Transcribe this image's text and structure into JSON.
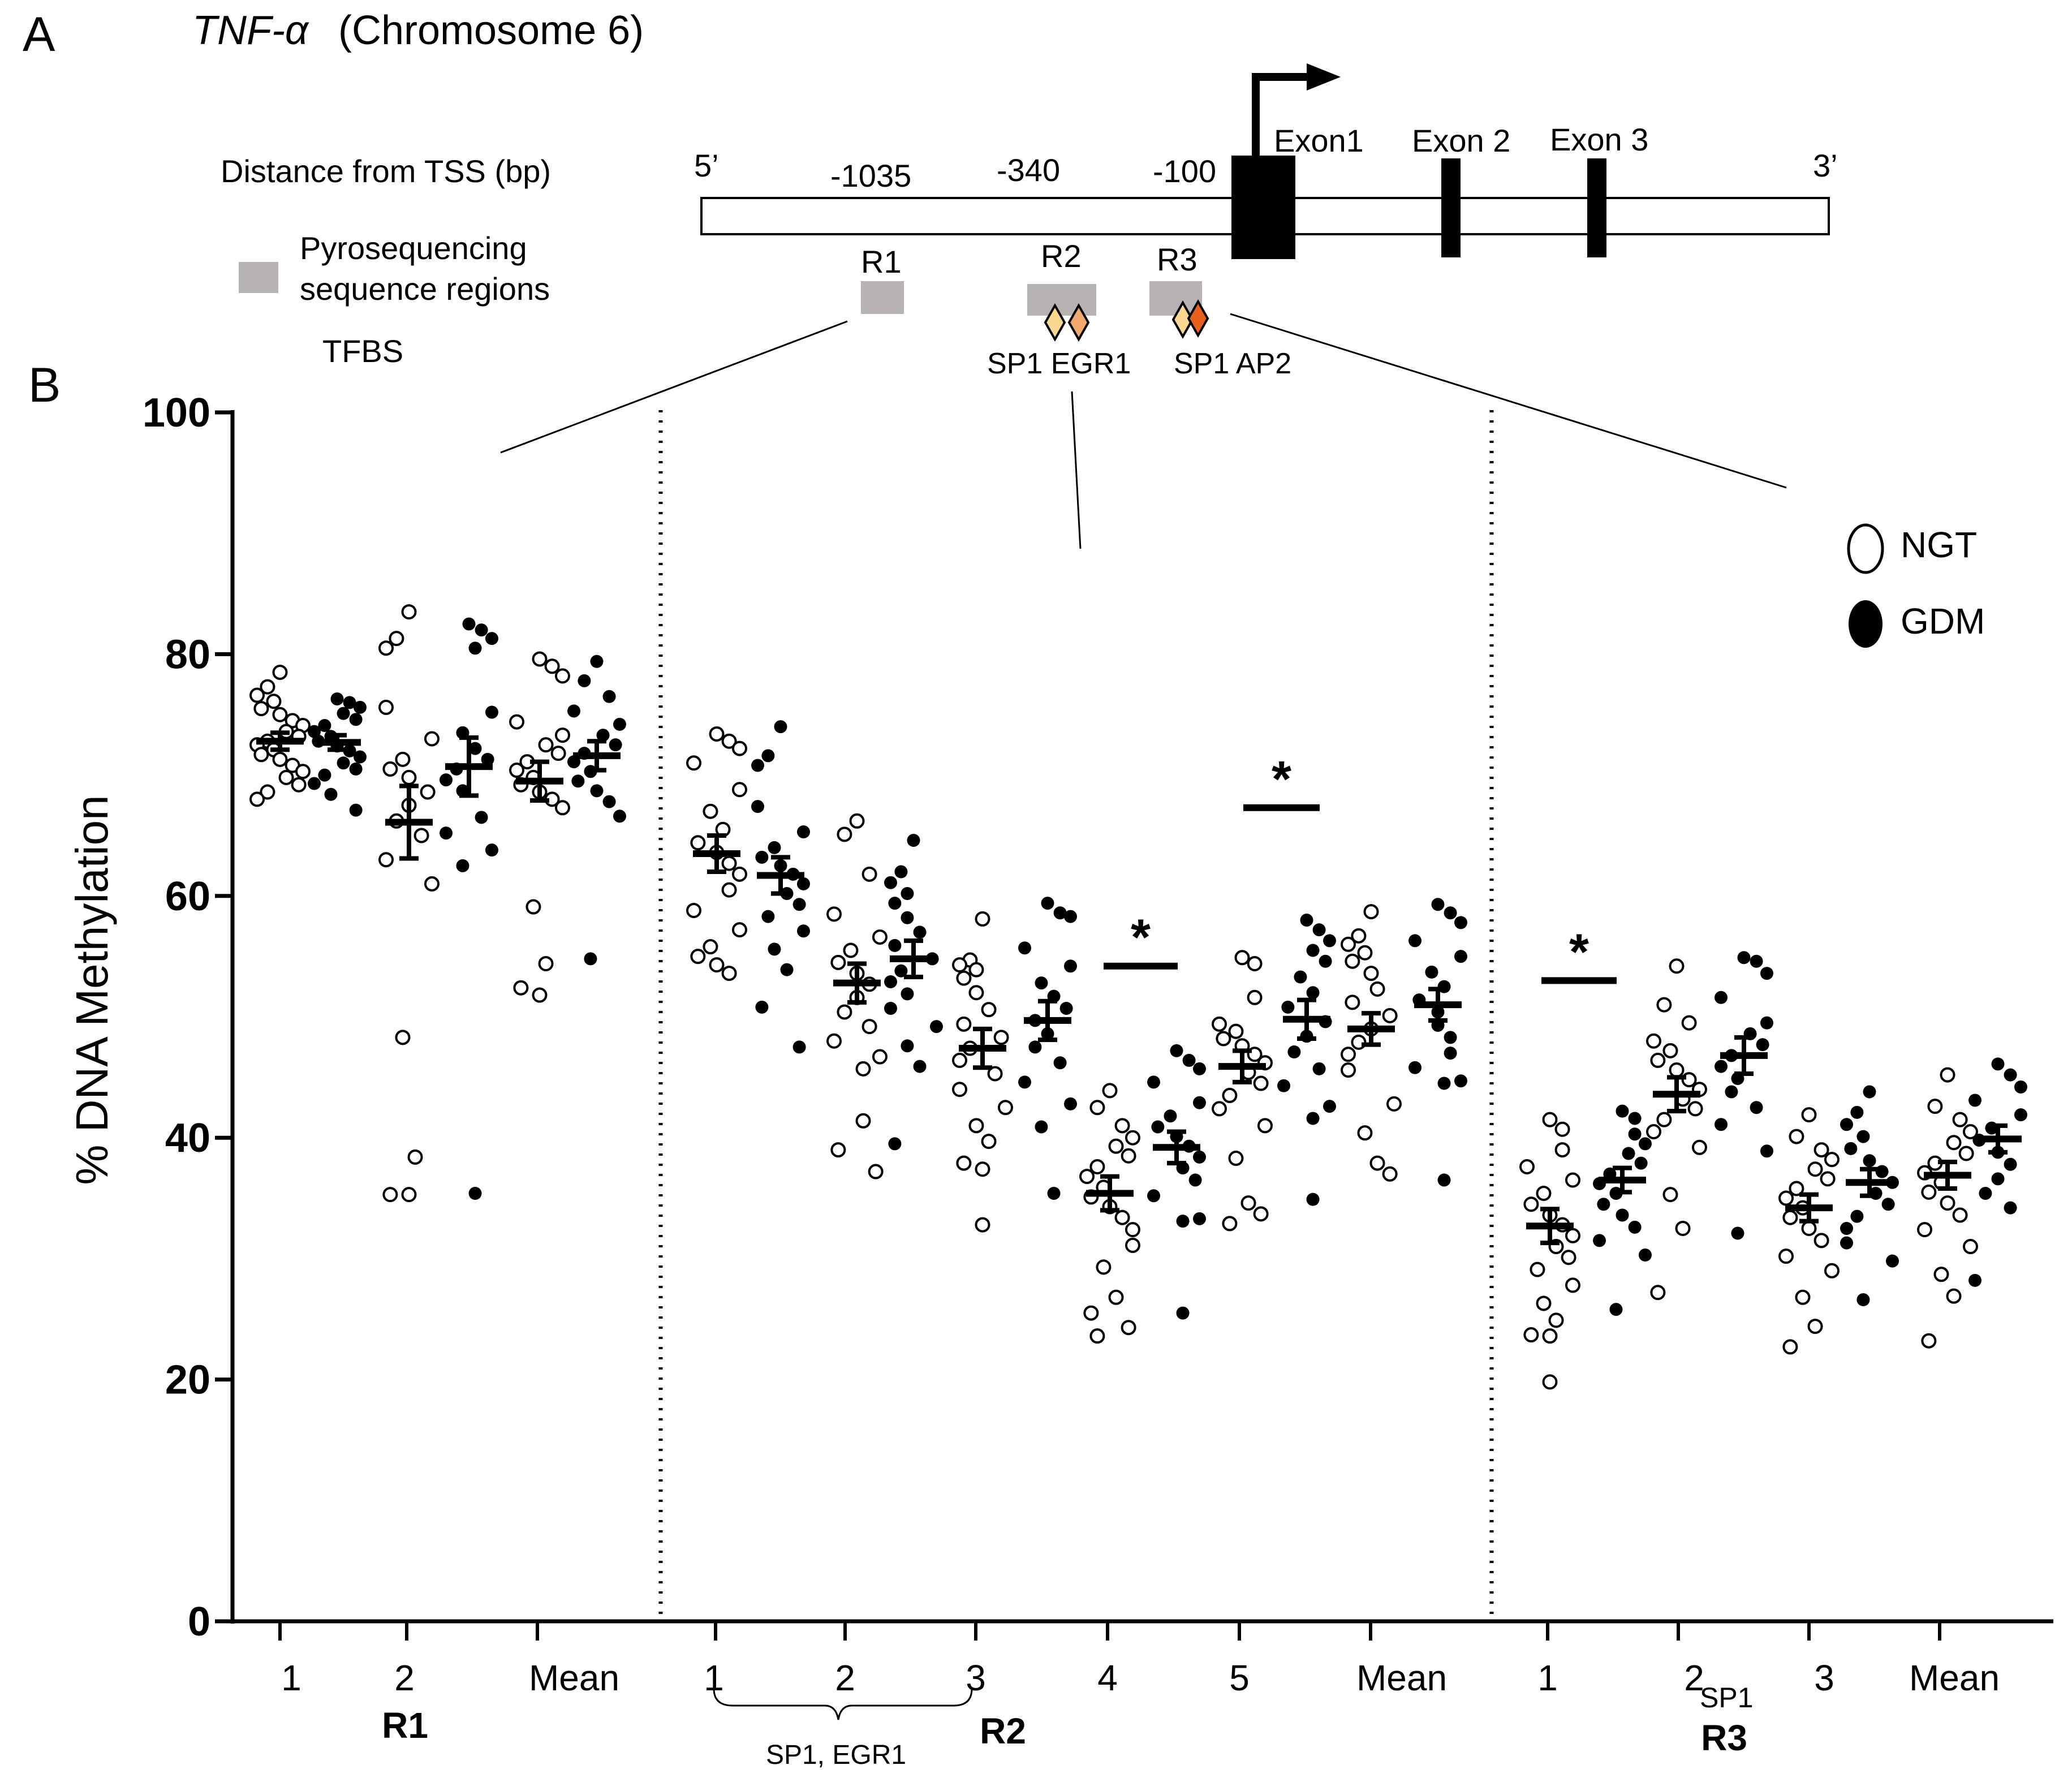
{
  "panel_a": {
    "letter": "A",
    "gene": "TNF-α",
    "chromosome": "(Chromosome 6)",
    "distance_label": "Distance from TSS (bp)",
    "five_prime": "5’",
    "three_prime": "3’",
    "positions": [
      "-1035",
      "-340",
      "-100"
    ],
    "exons": [
      "Exon1",
      "Exon 2",
      "Exon 3"
    ],
    "legend_regions_line1": "Pyrosequencing",
    "legend_regions_line2": "sequence regions",
    "legend_tfbs": "TFBS",
    "regions": [
      "R1",
      "R2",
      "R3"
    ],
    "tfbs_r2": "SP1 EGR1",
    "tfbs_r3": "SP1 AP2",
    "colors": {
      "region_box": "#b7b3b3",
      "tfbs_light": "#fbd891",
      "tfbs_mid": "#f5a86c",
      "tfbs_dark": "#e5611d"
    }
  },
  "chart_data": {
    "type": "scatter",
    "panel_letter": "B",
    "ylabel": "% DNA Methylation",
    "ylim": [
      0,
      100
    ],
    "yticks": [
      "0",
      "20",
      "40",
      "60",
      "80",
      "100"
    ],
    "legend": {
      "ngt": "NGT",
      "gdm": "GDM"
    },
    "bracket_label": "SP1, EGR1",
    "r3_sp1_subscript": "SP1",
    "significance_marker": "*",
    "groups": [
      {
        "region": "R1",
        "label": "1",
        "ngt": {
          "mean": 72.8,
          "sem": 0.7,
          "values": [
            78.5,
            77.3,
            76.6,
            76.1,
            75.5,
            75.0,
            74.5,
            74.1,
            73.6,
            73.2,
            72.8,
            72.5,
            72.1,
            71.7,
            71.3,
            70.8,
            70.3,
            69.8,
            69.2,
            68.6,
            68.0
          ]
        },
        "gdm": {
          "mean": 72.7,
          "sem": 0.6,
          "values": [
            76.3,
            76.0,
            75.6,
            75.1,
            74.6,
            74.1,
            73.6,
            73.2,
            72.8,
            72.4,
            72.0,
            71.5,
            71.0,
            70.5,
            70.0,
            69.3,
            68.4,
            67.1
          ]
        }
      },
      {
        "region": "R1",
        "label": "2",
        "ngt": {
          "mean": 66.1,
          "sem": 3.0,
          "values": [
            83.5,
            81.3,
            80.5,
            75.6,
            73.0,
            71.3,
            70.5,
            69.8,
            68.6,
            67.5,
            66.2,
            65.0,
            63.0,
            61.0,
            48.3,
            38.4,
            35.3,
            35.3
          ]
        },
        "gdm": {
          "mean": 70.7,
          "sem": 2.4,
          "values": [
            82.5,
            82.0,
            81.3,
            80.5,
            75.2,
            73.5,
            72.2,
            71.3,
            70.5,
            69.6,
            68.7,
            66.5,
            65.2,
            63.8,
            62.5,
            35.4
          ]
        }
      },
      {
        "region": "R1",
        "label": "Mean",
        "ngt": {
          "mean": 69.5,
          "sem": 1.6,
          "values": [
            79.6,
            79.0,
            78.2,
            74.4,
            73.3,
            72.5,
            71.8,
            71.1,
            70.4,
            69.8,
            69.2,
            68.6,
            68.0,
            67.3,
            59.1,
            54.4,
            52.4,
            51.8
          ]
        },
        "gdm": {
          "mean": 71.6,
          "sem": 1.2,
          "values": [
            79.4,
            77.8,
            76.5,
            75.3,
            74.2,
            73.3,
            72.5,
            71.8,
            71.1,
            70.3,
            69.5,
            68.7,
            67.8,
            66.6,
            54.8
          ]
        }
      },
      {
        "region": "R2",
        "label": "1",
        "ngt": {
          "mean": 63.5,
          "sem": 1.5,
          "values": [
            73.4,
            72.8,
            72.2,
            71.0,
            68.8,
            67.0,
            65.5,
            64.4,
            63.6,
            62.7,
            61.8,
            60.5,
            58.8,
            57.2,
            55.8,
            55.0,
            54.3,
            53.6
          ]
        },
        "gdm": {
          "mean": 61.7,
          "sem": 1.5,
          "values": [
            74.0,
            71.6,
            70.8,
            67.4,
            65.3,
            64.0,
            63.2,
            62.5,
            61.8,
            61.0,
            60.2,
            59.3,
            58.3,
            57.1,
            55.6,
            53.9,
            50.8,
            47.5
          ]
        }
      },
      {
        "region": "R2",
        "label": "2",
        "ngt": {
          "mean": 52.8,
          "sem": 1.6,
          "values": [
            66.2,
            65.1,
            61.8,
            58.5,
            56.6,
            55.5,
            54.5,
            53.6,
            52.7,
            51.6,
            50.4,
            49.2,
            48.0,
            46.7,
            45.7,
            41.4,
            39.0,
            37.2
          ]
        },
        "gdm": {
          "mean": 54.8,
          "sem": 1.5,
          "values": [
            64.6,
            62.0,
            61.1,
            60.2,
            59.4,
            58.2,
            57.0,
            55.9,
            54.8,
            53.8,
            52.9,
            51.9,
            50.7,
            49.2,
            47.6,
            45.9,
            39.5
          ]
        }
      },
      {
        "region": "R2",
        "label": "3",
        "ngt": {
          "mean": 47.4,
          "sem": 1.6,
          "values": [
            58.1,
            54.7,
            54.3,
            53.9,
            53.2,
            52.0,
            50.6,
            49.4,
            48.3,
            47.4,
            46.4,
            45.3,
            44.0,
            42.5,
            41.0,
            39.7,
            37.9,
            37.4,
            32.8
          ]
        },
        "gdm": {
          "mean": 49.7,
          "sem": 1.6,
          "values": [
            59.4,
            58.6,
            58.3,
            55.7,
            54.2,
            52.8,
            51.7,
            50.7,
            49.7,
            48.6,
            47.5,
            46.2,
            44.6,
            42.8,
            40.9,
            35.4
          ]
        }
      },
      {
        "region": "R2",
        "label": "4",
        "ngt": {
          "mean": 35.4,
          "sem": 1.4,
          "values": [
            43.9,
            42.5,
            41.0,
            40.0,
            39.3,
            38.5,
            37.6,
            36.8,
            35.9,
            35.1,
            34.3,
            33.4,
            32.4,
            31.1,
            29.3,
            26.8,
            25.5,
            24.3,
            23.6
          ]
        },
        "gdm": {
          "mean": 39.2,
          "sem": 1.3,
          "values": [
            47.2,
            46.4,
            45.7,
            44.6,
            42.9,
            41.8,
            40.9,
            40.1,
            39.3,
            38.4,
            37.5,
            36.5,
            35.2,
            33.3,
            33.1,
            25.5
          ]
        }
      },
      {
        "region": "R2",
        "label": "5",
        "ngt": {
          "mean": 45.9,
          "sem": 1.3,
          "values": [
            54.9,
            54.4,
            51.6,
            49.4,
            48.8,
            48.2,
            47.6,
            46.9,
            46.2,
            45.4,
            44.5,
            43.5,
            42.4,
            41.0,
            38.3,
            34.6,
            33.7,
            32.9
          ]
        },
        "gdm": {
          "mean": 49.8,
          "sem": 1.6,
          "values": [
            58.0,
            57.2,
            56.3,
            55.5,
            54.6,
            53.3,
            52.0,
            50.8,
            49.6,
            48.4,
            47.1,
            45.7,
            44.3,
            42.6,
            41.6,
            34.9
          ]
        }
      },
      {
        "region": "R2",
        "label": "Mean",
        "ngt": {
          "mean": 49.0,
          "sem": 1.3,
          "values": [
            58.7,
            56.7,
            56.0,
            55.3,
            54.6,
            53.6,
            52.3,
            51.2,
            50.1,
            49.0,
            47.9,
            46.9,
            45.6,
            42.8,
            40.4,
            37.9,
            37.0
          ]
        },
        "gdm": {
          "mean": 51.0,
          "sem": 1.3,
          "values": [
            59.3,
            58.6,
            57.8,
            56.3,
            55.0,
            53.7,
            52.5,
            51.4,
            50.4,
            49.3,
            48.3,
            47.0,
            45.8,
            44.7,
            44.5,
            36.5
          ]
        }
      },
      {
        "region": "R3",
        "label": "1",
        "ngt": {
          "mean": 32.7,
          "sem": 1.4,
          "values": [
            41.5,
            40.7,
            39.0,
            37.6,
            36.5,
            35.4,
            34.5,
            33.6,
            32.8,
            31.9,
            31.0,
            30.1,
            29.1,
            27.8,
            26.3,
            24.9,
            23.7,
            23.6,
            19.8
          ]
        },
        "gdm": {
          "mean": 36.5,
          "sem": 1.0,
          "values": [
            42.2,
            41.6,
            40.3,
            39.5,
            38.7,
            37.9,
            37.0,
            36.2,
            35.4,
            34.5,
            33.6,
            32.6,
            31.5,
            30.3,
            25.8
          ]
        }
      },
      {
        "region": "R3",
        "label": "2",
        "ngt": {
          "mean": 43.6,
          "sem": 1.4,
          "values": [
            54.2,
            51.0,
            49.5,
            48.0,
            47.2,
            46.4,
            45.6,
            44.8,
            44.0,
            43.2,
            42.4,
            41.5,
            40.5,
            39.2,
            35.3,
            32.5,
            27.2
          ]
        },
        "gdm": {
          "mean": 46.8,
          "sem": 1.5,
          "values": [
            54.9,
            54.6,
            53.6,
            51.6,
            49.5,
            48.6,
            47.7,
            46.8,
            45.9,
            44.9,
            43.8,
            42.5,
            41.1,
            38.9,
            32.1
          ]
        }
      },
      {
        "region": "R3",
        "label": "3",
        "ngt": {
          "mean": 34.2,
          "sem": 1.1,
          "values": [
            41.9,
            40.1,
            39.0,
            38.2,
            37.4,
            36.6,
            35.8,
            35.0,
            34.2,
            33.4,
            32.5,
            31.5,
            30.2,
            29.0,
            26.8,
            24.4,
            22.7
          ]
        },
        "gdm": {
          "mean": 36.3,
          "sem": 1.1,
          "values": [
            43.8,
            42.1,
            41.1,
            40.1,
            39.1,
            38.1,
            37.2,
            36.3,
            35.4,
            34.5,
            33.5,
            32.5,
            31.3,
            29.8,
            26.6
          ]
        }
      },
      {
        "region": "R3",
        "label": "Mean",
        "ngt": {
          "mean": 36.9,
          "sem": 1.1,
          "values": [
            45.2,
            42.6,
            41.5,
            40.5,
            39.6,
            38.7,
            37.9,
            37.1,
            36.3,
            35.5,
            34.6,
            33.6,
            32.4,
            31.0,
            28.7,
            26.9,
            23.2
          ]
        },
        "gdm": {
          "mean": 39.9,
          "sem": 1.1,
          "values": [
            46.1,
            45.2,
            44.2,
            43.1,
            41.9,
            40.8,
            39.8,
            38.8,
            37.8,
            36.6,
            35.4,
            34.2,
            28.2
          ]
        }
      }
    ],
    "xlabels": [
      "1",
      "2",
      "Mean",
      "1",
      "2",
      "3",
      "4",
      "5",
      "Mean",
      "1",
      "2",
      "3",
      "Mean"
    ],
    "region_labels": [
      "R1",
      "R2",
      "R3"
    ],
    "significance": [
      {
        "group": "R2-4",
        "bar_y": 54.2
      },
      {
        "group": "R2-5",
        "bar_y": 67.3
      },
      {
        "group": "R3-1",
        "bar_y": 53.0
      }
    ]
  }
}
